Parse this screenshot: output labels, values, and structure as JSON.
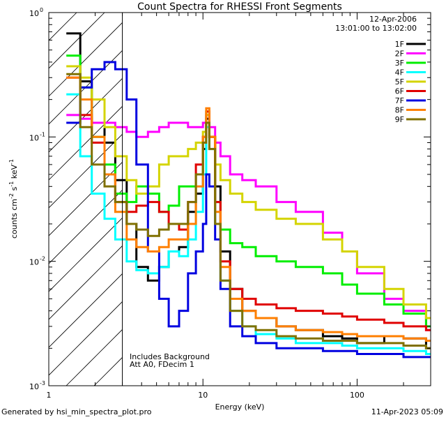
{
  "chart_data": {
    "type": "line",
    "title": "Count Spectra for RHESSI Front Segments",
    "xlabel": "Energy (keV)",
    "ylabel": "counts cm",
    "ylabel_sup1": "-2",
    "ylabel_mid": " s",
    "ylabel_sup2": "-1",
    "ylabel_end": " keV",
    "ylabel_sup3": "-1",
    "xscale": "log",
    "yscale": "log",
    "xlim": [
      1,
      300
    ],
    "ylim": [
      0.001,
      1
    ],
    "x_ticks": [
      {
        "value": 1,
        "label": "1"
      },
      {
        "value": 10,
        "label": "10"
      },
      {
        "value": 100,
        "label": "100"
      }
    ],
    "y_ticks": [
      {
        "value": 0.001,
        "base": "10",
        "exp": "-3"
      },
      {
        "value": 0.01,
        "base": "10",
        "exp": "-2"
      },
      {
        "value": 0.1,
        "base": "10",
        "exp": "-1"
      },
      {
        "value": 1,
        "base": "10",
        "exp": "0"
      }
    ],
    "hatched_region": {
      "x_from": 1,
      "x_to": 3
    },
    "date": "12-Apr-2006",
    "time_range": "13:01:00 to 13:02:00",
    "annotation_line1": "Includes Background",
    "annotation_line2": "Att A0, FDecim 1",
    "footer_left": "Generated by hsi_min_spectra_plot.pro",
    "footer_right": "11-Apr-2023 05:09",
    "series": [
      {
        "name": "1F",
        "color": "#000000",
        "points": [
          [
            1.3,
            0.68
          ],
          [
            1.6,
            0.28
          ],
          [
            1.9,
            0.13
          ],
          [
            2.3,
            0.09
          ],
          [
            2.7,
            0.045
          ],
          [
            3.2,
            0.02
          ],
          [
            3.7,
            0.009
          ],
          [
            4.4,
            0.007
          ],
          [
            5.2,
            0.009
          ],
          [
            6,
            0.012
          ],
          [
            7,
            0.013
          ],
          [
            8,
            0.025
          ],
          [
            9,
            0.035
          ],
          [
            10,
            0.08
          ],
          [
            10.5,
            0.14
          ],
          [
            11,
            0.1
          ],
          [
            12,
            0.04
          ],
          [
            13,
            0.012
          ],
          [
            15,
            0.006
          ],
          [
            18,
            0.004
          ],
          [
            22,
            0.0035
          ],
          [
            30,
            0.003
          ],
          [
            40,
            0.0028
          ],
          [
            60,
            0.0025
          ],
          [
            80,
            0.0024
          ],
          [
            100,
            0.0022
          ],
          [
            150,
            0.0025
          ],
          [
            200,
            0.0024
          ],
          [
            280,
            0.002
          ]
        ]
      },
      {
        "name": "2F",
        "color": "#ff00ff",
        "points": [
          [
            1.3,
            0.15
          ],
          [
            1.6,
            0.14
          ],
          [
            1.9,
            0.13
          ],
          [
            2.3,
            0.13
          ],
          [
            2.7,
            0.12
          ],
          [
            3.2,
            0.11
          ],
          [
            3.7,
            0.1
          ],
          [
            4.4,
            0.11
          ],
          [
            5.2,
            0.12
          ],
          [
            6,
            0.13
          ],
          [
            7,
            0.13
          ],
          [
            8,
            0.12
          ],
          [
            9,
            0.12
          ],
          [
            10,
            0.13
          ],
          [
            10.5,
            0.15
          ],
          [
            11,
            0.12
          ],
          [
            12,
            0.09
          ],
          [
            13,
            0.07
          ],
          [
            15,
            0.05
          ],
          [
            18,
            0.045
          ],
          [
            22,
            0.04
          ],
          [
            30,
            0.03
          ],
          [
            40,
            0.025
          ],
          [
            60,
            0.017
          ],
          [
            80,
            0.012
          ],
          [
            100,
            0.008
          ],
          [
            150,
            0.005
          ],
          [
            200,
            0.004
          ],
          [
            280,
            0.0028
          ]
        ]
      },
      {
        "name": "3F",
        "color": "#00ee00",
        "points": [
          [
            1.3,
            0.45
          ],
          [
            1.6,
            0.25
          ],
          [
            1.9,
            0.1
          ],
          [
            2.3,
            0.06
          ],
          [
            2.7,
            0.035
          ],
          [
            3.2,
            0.03
          ],
          [
            3.7,
            0.04
          ],
          [
            4.4,
            0.035
          ],
          [
            5.2,
            0.025
          ],
          [
            6,
            0.028
          ],
          [
            7,
            0.04
          ],
          [
            8,
            0.04
          ],
          [
            9,
            0.05
          ],
          [
            10,
            0.09
          ],
          [
            10.5,
            0.16
          ],
          [
            11,
            0.1
          ],
          [
            12,
            0.03
          ],
          [
            13,
            0.018
          ],
          [
            15,
            0.014
          ],
          [
            18,
            0.013
          ],
          [
            22,
            0.011
          ],
          [
            30,
            0.01
          ],
          [
            40,
            0.009
          ],
          [
            60,
            0.008
          ],
          [
            80,
            0.0065
          ],
          [
            100,
            0.0055
          ],
          [
            150,
            0.0045
          ],
          [
            200,
            0.0038
          ],
          [
            280,
            0.003
          ]
        ]
      },
      {
        "name": "4F",
        "color": "#00ffff",
        "points": [
          [
            1.3,
            0.22
          ],
          [
            1.6,
            0.07
          ],
          [
            1.9,
            0.035
          ],
          [
            2.3,
            0.022
          ],
          [
            2.7,
            0.015
          ],
          [
            3.2,
            0.01
          ],
          [
            3.7,
            0.0085
          ],
          [
            4.4,
            0.008
          ],
          [
            5.2,
            0.009
          ],
          [
            6,
            0.012
          ],
          [
            7,
            0.011
          ],
          [
            8,
            0.015
          ],
          [
            9,
            0.025
          ],
          [
            10,
            0.05
          ],
          [
            10.5,
            0.12
          ],
          [
            11,
            0.08
          ],
          [
            12,
            0.02
          ],
          [
            13,
            0.007
          ],
          [
            15,
            0.004
          ],
          [
            18,
            0.003
          ],
          [
            22,
            0.0026
          ],
          [
            30,
            0.0024
          ],
          [
            40,
            0.0022
          ],
          [
            60,
            0.0022
          ],
          [
            80,
            0.0021
          ],
          [
            100,
            0.002
          ],
          [
            150,
            0.002
          ],
          [
            200,
            0.0019
          ],
          [
            280,
            0.0018
          ]
        ]
      },
      {
        "name": "5F",
        "color": "#d4d400",
        "points": [
          [
            1.3,
            0.37
          ],
          [
            1.6,
            0.3
          ],
          [
            1.9,
            0.2
          ],
          [
            2.3,
            0.12
          ],
          [
            2.7,
            0.07
          ],
          [
            3.2,
            0.045
          ],
          [
            3.7,
            0.035
          ],
          [
            4.4,
            0.04
          ],
          [
            5.2,
            0.06
          ],
          [
            6,
            0.07
          ],
          [
            7,
            0.07
          ],
          [
            8,
            0.08
          ],
          [
            9,
            0.09
          ],
          [
            10,
            0.11
          ],
          [
            10.5,
            0.15
          ],
          [
            11,
            0.1
          ],
          [
            12,
            0.06
          ],
          [
            13,
            0.045
          ],
          [
            15,
            0.035
          ],
          [
            18,
            0.03
          ],
          [
            22,
            0.026
          ],
          [
            30,
            0.022
          ],
          [
            40,
            0.02
          ],
          [
            60,
            0.015
          ],
          [
            80,
            0.012
          ],
          [
            100,
            0.009
          ],
          [
            150,
            0.006
          ],
          [
            200,
            0.0045
          ],
          [
            280,
            0.0035
          ]
        ]
      },
      {
        "name": "6F",
        "color": "#e00000",
        "points": [
          [
            1.3,
            0.3
          ],
          [
            1.6,
            0.15
          ],
          [
            1.9,
            0.09
          ],
          [
            2.3,
            0.05
          ],
          [
            2.7,
            0.03
          ],
          [
            3.2,
            0.025
          ],
          [
            3.7,
            0.028
          ],
          [
            4.4,
            0.03
          ],
          [
            5.2,
            0.025
          ],
          [
            6,
            0.02
          ],
          [
            7,
            0.018
          ],
          [
            8,
            0.03
          ],
          [
            9,
            0.06
          ],
          [
            10,
            0.1
          ],
          [
            10.5,
            0.16
          ],
          [
            11,
            0.1
          ],
          [
            12,
            0.03
          ],
          [
            13,
            0.01
          ],
          [
            15,
            0.006
          ],
          [
            18,
            0.005
          ],
          [
            22,
            0.0045
          ],
          [
            30,
            0.0042
          ],
          [
            40,
            0.004
          ],
          [
            60,
            0.0038
          ],
          [
            80,
            0.0036
          ],
          [
            100,
            0.0034
          ],
          [
            150,
            0.0032
          ],
          [
            200,
            0.003
          ],
          [
            280,
            0.0028
          ]
        ]
      },
      {
        "name": "7F",
        "color": "#0000e0",
        "points": [
          [
            1.3,
            0.13
          ],
          [
            1.6,
            0.25
          ],
          [
            1.9,
            0.35
          ],
          [
            2.3,
            0.4
          ],
          [
            2.7,
            0.35
          ],
          [
            3.2,
            0.2
          ],
          [
            3.7,
            0.06
          ],
          [
            4.4,
            0.012
          ],
          [
            5.2,
            0.005
          ],
          [
            6,
            0.003
          ],
          [
            7,
            0.004
          ],
          [
            8,
            0.008
          ],
          [
            9,
            0.012
          ],
          [
            10,
            0.02
          ],
          [
            10.5,
            0.05
          ],
          [
            11,
            0.04
          ],
          [
            12,
            0.015
          ],
          [
            13,
            0.006
          ],
          [
            15,
            0.003
          ],
          [
            18,
            0.0025
          ],
          [
            22,
            0.0022
          ],
          [
            30,
            0.002
          ],
          [
            40,
            0.002
          ],
          [
            60,
            0.0019
          ],
          [
            80,
            0.0019
          ],
          [
            100,
            0.0018
          ],
          [
            150,
            0.0018
          ],
          [
            200,
            0.0017
          ],
          [
            280,
            0.0017
          ]
        ]
      },
      {
        "name": "8F",
        "color": "#ff7f00",
        "points": [
          [
            1.3,
            0.3
          ],
          [
            1.6,
            0.2
          ],
          [
            1.9,
            0.1
          ],
          [
            2.3,
            0.05
          ],
          [
            2.7,
            0.025
          ],
          [
            3.2,
            0.015
          ],
          [
            3.7,
            0.013
          ],
          [
            4.4,
            0.012
          ],
          [
            5.2,
            0.013
          ],
          [
            6,
            0.015
          ],
          [
            7,
            0.015
          ],
          [
            8,
            0.02
          ],
          [
            9,
            0.04
          ],
          [
            10,
            0.1
          ],
          [
            10.5,
            0.17
          ],
          [
            11,
            0.1
          ],
          [
            12,
            0.025
          ],
          [
            13,
            0.009
          ],
          [
            15,
            0.005
          ],
          [
            18,
            0.004
          ],
          [
            22,
            0.0035
          ],
          [
            30,
            0.003
          ],
          [
            40,
            0.0028
          ],
          [
            60,
            0.0027
          ],
          [
            80,
            0.0026
          ],
          [
            100,
            0.0025
          ],
          [
            150,
            0.0025
          ],
          [
            200,
            0.0024
          ],
          [
            280,
            0.0023
          ]
        ]
      },
      {
        "name": "9F",
        "color": "#807000",
        "points": [
          [
            1.3,
            0.32
          ],
          [
            1.6,
            0.12
          ],
          [
            1.9,
            0.06
          ],
          [
            2.3,
            0.04
          ],
          [
            2.7,
            0.03
          ],
          [
            3.2,
            0.02
          ],
          [
            3.7,
            0.018
          ],
          [
            4.4,
            0.016
          ],
          [
            5.2,
            0.018
          ],
          [
            6,
            0.02
          ],
          [
            7,
            0.02
          ],
          [
            8,
            0.03
          ],
          [
            9,
            0.05
          ],
          [
            10,
            0.09
          ],
          [
            10.5,
            0.13
          ],
          [
            11,
            0.08
          ],
          [
            12,
            0.02
          ],
          [
            13,
            0.007
          ],
          [
            15,
            0.004
          ],
          [
            18,
            0.003
          ],
          [
            22,
            0.0028
          ],
          [
            30,
            0.0025
          ],
          [
            40,
            0.0024
          ],
          [
            60,
            0.0023
          ],
          [
            80,
            0.0023
          ],
          [
            100,
            0.0022
          ],
          [
            150,
            0.0022
          ],
          [
            200,
            0.0021
          ],
          [
            280,
            0.002
          ]
        ]
      }
    ]
  }
}
